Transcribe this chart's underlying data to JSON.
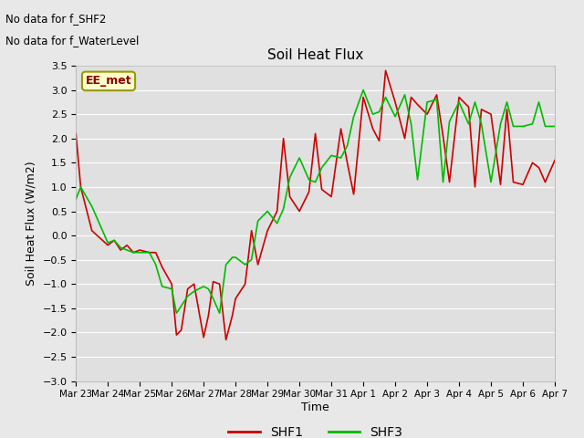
{
  "title": "Soil Heat Flux",
  "ylabel": "Soil Heat Flux (W/m2)",
  "xlabel": "Time",
  "ylim": [
    -3.0,
    3.5
  ],
  "bg_color": "#e8e8e8",
  "plot_bg_color": "#e0e0e0",
  "grid_color": "#ffffff",
  "no_data_text": [
    "No data for f_SHF2",
    "No data for f_WaterLevel"
  ],
  "ee_met_label": "EE_met",
  "x_tick_labels": [
    "Mar 23",
    "Mar 24",
    "Mar 25",
    "Mar 26",
    "Mar 27",
    "Mar 28",
    "Mar 29",
    "Mar 30",
    "Mar 31",
    "Apr 1",
    "Apr 2",
    "Apr 3",
    "Apr 4",
    "Apr 5",
    "Apr 6",
    "Apr 7"
  ],
  "shf1_color": "#cc0000",
  "shf3_color": "#00bb00",
  "shf1_x": [
    0,
    0.15,
    0.5,
    1.0,
    1.2,
    1.4,
    1.6,
    1.8,
    2.0,
    2.3,
    2.5,
    2.7,
    3.0,
    3.15,
    3.3,
    3.5,
    3.7,
    4.0,
    4.15,
    4.3,
    4.5,
    4.7,
    4.9,
    5.0,
    5.3,
    5.5,
    5.7,
    6.0,
    6.3,
    6.5,
    6.7,
    7.0,
    7.3,
    7.5,
    7.7,
    8.0,
    8.3,
    8.5,
    8.7,
    9.0,
    9.3,
    9.5,
    9.7,
    10.0,
    10.3,
    10.5,
    10.7,
    11.0,
    11.3,
    11.5,
    11.7,
    12.0,
    12.3,
    12.5,
    12.7,
    13.0,
    13.3,
    13.5,
    13.7,
    14.0,
    14.3,
    14.5,
    14.7,
    15.0
  ],
  "shf1_y": [
    2.1,
    1.0,
    0.1,
    -0.2,
    -0.1,
    -0.3,
    -0.2,
    -0.35,
    -0.3,
    -0.35,
    -0.35,
    -0.65,
    -1.0,
    -2.05,
    -1.95,
    -1.1,
    -1.0,
    -2.1,
    -1.65,
    -0.95,
    -1.0,
    -2.15,
    -1.65,
    -1.3,
    -1.0,
    0.1,
    -0.6,
    0.1,
    0.5,
    2.0,
    0.8,
    0.5,
    0.9,
    2.1,
    0.95,
    0.8,
    2.2,
    1.5,
    0.85,
    2.85,
    2.2,
    1.95,
    3.4,
    2.75,
    2.0,
    2.85,
    2.7,
    2.5,
    2.9,
    2.05,
    1.1,
    2.85,
    2.65,
    1.0,
    2.6,
    2.5,
    1.05,
    2.6,
    1.1,
    1.05,
    1.5,
    1.4,
    1.1,
    1.55
  ],
  "shf3_x": [
    0,
    0.15,
    0.5,
    1.0,
    1.2,
    1.4,
    1.6,
    1.8,
    2.0,
    2.3,
    2.5,
    2.7,
    3.0,
    3.15,
    3.3,
    3.5,
    3.7,
    4.0,
    4.15,
    4.3,
    4.5,
    4.7,
    4.9,
    5.0,
    5.3,
    5.5,
    5.7,
    6.0,
    6.3,
    6.5,
    6.7,
    7.0,
    7.3,
    7.5,
    7.7,
    8.0,
    8.3,
    8.5,
    8.7,
    9.0,
    9.3,
    9.5,
    9.7,
    10.0,
    10.3,
    10.5,
    10.7,
    11.0,
    11.3,
    11.5,
    11.7,
    12.0,
    12.3,
    12.5,
    12.7,
    13.0,
    13.3,
    13.5,
    13.7,
    14.0,
    14.3,
    14.5,
    14.7,
    15.0
  ],
  "shf3_y": [
    0.75,
    1.0,
    0.6,
    -0.15,
    -0.1,
    -0.25,
    -0.3,
    -0.35,
    -0.35,
    -0.35,
    -0.6,
    -1.05,
    -1.1,
    -1.6,
    -1.45,
    -1.25,
    -1.15,
    -1.05,
    -1.1,
    -1.3,
    -1.6,
    -0.6,
    -0.45,
    -0.45,
    -0.6,
    -0.5,
    0.3,
    0.5,
    0.25,
    0.55,
    1.2,
    1.6,
    1.15,
    1.1,
    1.4,
    1.65,
    1.6,
    1.85,
    2.45,
    3.0,
    2.5,
    2.55,
    2.85,
    2.45,
    2.9,
    2.3,
    1.15,
    2.75,
    2.8,
    1.1,
    2.35,
    2.75,
    2.3,
    2.75,
    2.3,
    1.1,
    2.3,
    2.75,
    2.25,
    2.25,
    2.3,
    2.75,
    2.25,
    2.25
  ]
}
